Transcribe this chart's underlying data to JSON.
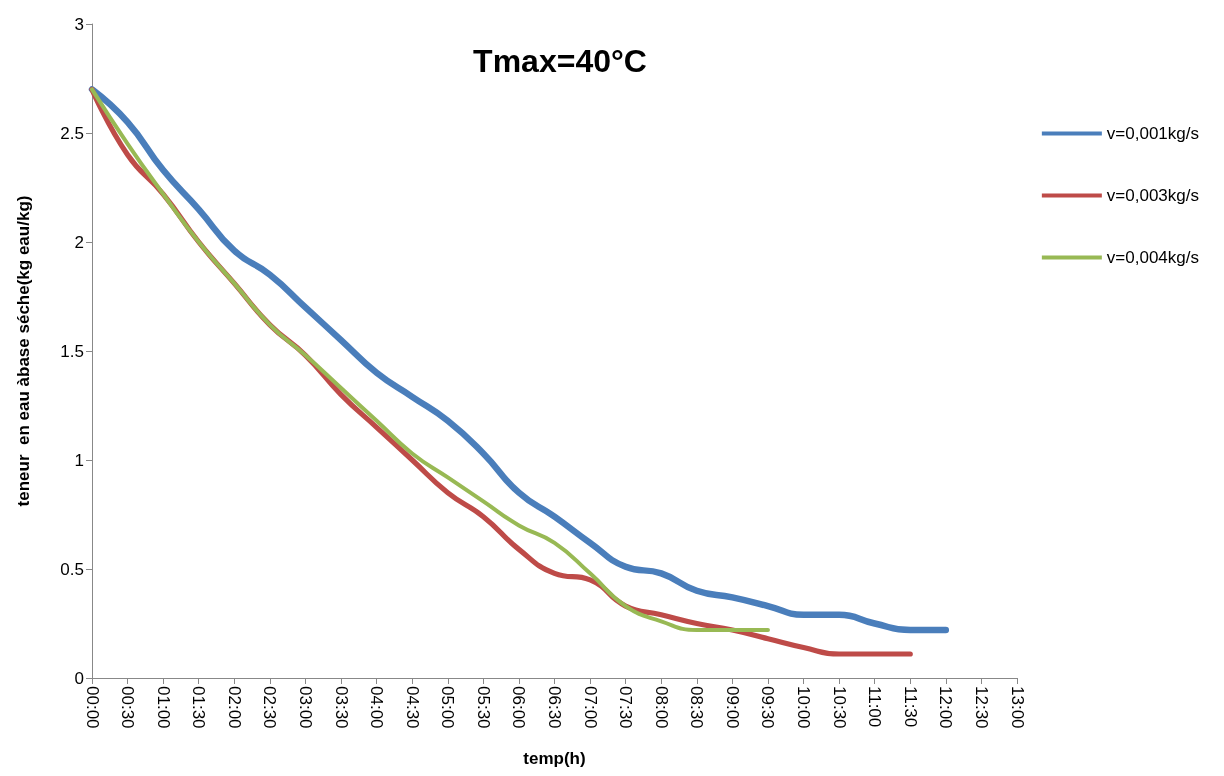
{
  "chart_data": {
    "type": "line",
    "title": "Tmax=40°C",
    "xlabel": "temp(h)",
    "ylabel": "teneur  en eau àbase séche(kg eau/kg)",
    "categories": [
      "00:00",
      "00:30",
      "01:00",
      "01:30",
      "02:00",
      "02:30",
      "03:00",
      "03:30",
      "04:00",
      "04:30",
      "05:00",
      "05:30",
      "06:00",
      "06:30",
      "07:00",
      "07:30",
      "08:00",
      "08:30",
      "09:00",
      "09:30",
      "10:00",
      "10:30",
      "11:00",
      "11:30",
      "12:00",
      "12:30",
      "13:00"
    ],
    "series": [
      {
        "name": "v=0,001kg/s",
        "color": "#4a7ebb",
        "values": [
          2.7,
          2.55,
          2.33,
          2.15,
          1.96,
          1.85,
          1.7,
          1.55,
          1.4,
          1.29,
          1.18,
          1.03,
          0.85,
          0.74,
          0.62,
          0.51,
          0.48,
          0.4,
          0.37,
          0.33,
          0.29,
          0.29,
          0.25,
          0.22,
          0.22,
          null,
          null
        ]
      },
      {
        "name": "v=0,003kg/s",
        "color": "#be4b48",
        "values": [
          2.7,
          2.4,
          2.22,
          2.0,
          1.81,
          1.62,
          1.48,
          1.3,
          1.15,
          1.0,
          0.85,
          0.74,
          0.59,
          0.48,
          0.45,
          0.33,
          0.29,
          0.25,
          0.22,
          0.18,
          0.14,
          0.11,
          0.11,
          0.11,
          null,
          null,
          null
        ]
      },
      {
        "name": "v=0,004kg/s",
        "color": "#98b954",
        "values": [
          2.7,
          2.45,
          2.22,
          2.0,
          1.81,
          1.62,
          1.48,
          1.33,
          1.18,
          1.03,
          0.92,
          0.81,
          0.7,
          0.62,
          0.48,
          0.33,
          0.26,
          0.22,
          0.22,
          0.22,
          null,
          null,
          null,
          null,
          null,
          null,
          null
        ]
      }
    ],
    "ylim": [
      0,
      3
    ],
    "yticks": [
      0,
      0.5,
      1,
      1.5,
      2,
      2.5,
      3
    ],
    "grid": false,
    "legend": "right",
    "marker": "none",
    "line_style": "solid"
  }
}
